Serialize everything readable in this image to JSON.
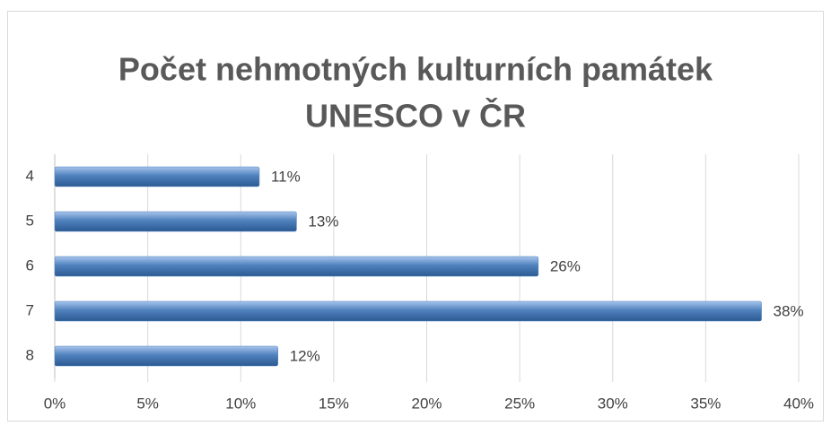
{
  "chart_data": {
    "type": "bar",
    "orientation": "horizontal",
    "title": [
      "Počet nehmotných kulturních památek",
      "UNESCO v ČR"
    ],
    "categories": [
      "4",
      "5",
      "6",
      "7",
      "8"
    ],
    "values": [
      11,
      13,
      26,
      38,
      12
    ],
    "value_labels": [
      "11%",
      "13%",
      "26%",
      "38%",
      "12%"
    ],
    "color": "#4f81bd",
    "xlim": [
      0,
      40
    ],
    "xticks": [
      {
        "value": 0,
        "label": "0%"
      },
      {
        "value": 5,
        "label": "5%"
      },
      {
        "value": 10,
        "label": "10%"
      },
      {
        "value": 15,
        "label": "15%"
      },
      {
        "value": 20,
        "label": "20%"
      },
      {
        "value": 25,
        "label": "25%"
      },
      {
        "value": 30,
        "label": "30%"
      },
      {
        "value": 35,
        "label": "35%"
      },
      {
        "value": 40,
        "label": "40%"
      }
    ],
    "grid": true
  }
}
